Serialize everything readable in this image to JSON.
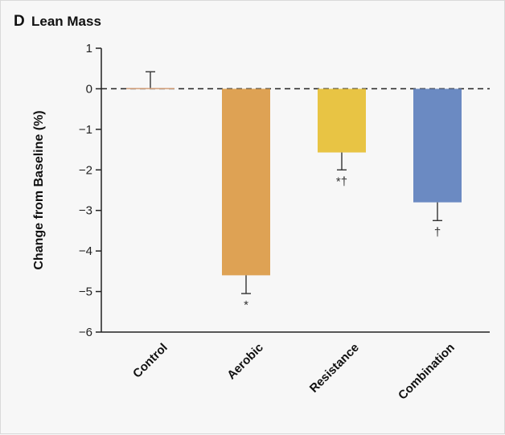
{
  "chart_data": {
    "type": "bar",
    "panel_letter": "D",
    "title": "Lean Mass",
    "ylabel": "Change from Baseline (%)",
    "xlabel": "",
    "ylim": [
      -6,
      1
    ],
    "yticks": [
      1,
      0,
      -1,
      -2,
      -3,
      -4,
      -5,
      -6
    ],
    "ytick_labels": [
      "1",
      "0",
      "−1",
      "−2",
      "−3",
      "−4",
      "−5",
      "−6"
    ],
    "categories": [
      "Control",
      "Aerobic",
      "Resistance",
      "Combination"
    ],
    "values": [
      0.02,
      -4.6,
      -1.57,
      -2.8
    ],
    "error_ends": [
      0.42,
      -5.05,
      -2.0,
      -3.25
    ],
    "annotations": [
      "",
      "*",
      "*†",
      "†"
    ],
    "colors": [
      "#d4a07a",
      "#dea254",
      "#e8c444",
      "#6b8ac2"
    ],
    "zero_line": "dashed",
    "grid": false
  }
}
